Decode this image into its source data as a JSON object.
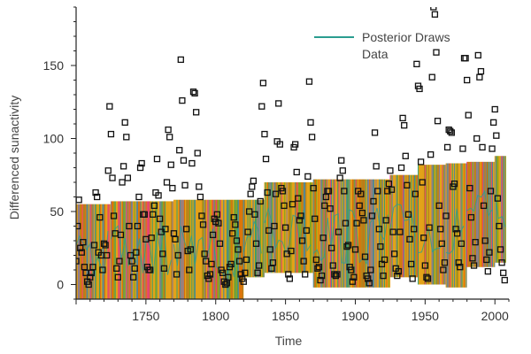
{
  "chart_data": {
    "type": "scatter",
    "xlabel": "Time",
    "ylabel": "Differenced sunactivity",
    "xlim": [
      1700,
      2010
    ],
    "ylim": [
      -10,
      190
    ],
    "xticks": [
      1750,
      1800,
      1850,
      1900,
      1950,
      2000
    ],
    "yticks": [
      0,
      50,
      100,
      150
    ],
    "legend": {
      "position": "top-right",
      "entries": [
        "Posterior Draws",
        "Data"
      ]
    },
    "colors": {
      "draws_line": "#2a9d8f",
      "data_marker": "#111111",
      "band_main": "#e3a21a"
    },
    "posterior_draws": {
      "segments": [
        {
          "x0": 1700,
          "x1": 1725,
          "low": -10,
          "high": 55
        },
        {
          "x0": 1725,
          "x1": 1770,
          "low": -10,
          "high": 57
        },
        {
          "x0": 1770,
          "x1": 1820,
          "low": -10,
          "high": 58
        },
        {
          "x0": 1820,
          "x1": 1835,
          "low": 5,
          "high": 58
        },
        {
          "x0": 1835,
          "x1": 1870,
          "low": 8,
          "high": 70
        },
        {
          "x0": 1870,
          "x1": 1925,
          "low": -2,
          "high": 72
        },
        {
          "x0": 1925,
          "x1": 1945,
          "low": 5,
          "high": 75
        },
        {
          "x0": 1945,
          "x1": 1965,
          "low": 0,
          "high": 82
        },
        {
          "x0": 1965,
          "x1": 1980,
          "low": -2,
          "high": 83
        },
        {
          "x0": 1980,
          "x1": 2000,
          "low": 12,
          "high": 84
        },
        {
          "x0": 2000,
          "x1": 2008,
          "low": 15,
          "high": 88
        }
      ]
    },
    "data_series": {
      "name": "Data",
      "points": [
        [
          1700,
          16
        ],
        [
          1701,
          40
        ],
        [
          1702,
          58
        ],
        [
          1703,
          25
        ],
        [
          1704,
          22
        ],
        [
          1705,
          29
        ],
        [
          1706,
          12
        ],
        [
          1707,
          8
        ],
        [
          1708,
          2
        ],
        [
          1709,
          0
        ],
        [
          1710,
          5
        ],
        [
          1711,
          8
        ],
        [
          1712,
          12
        ],
        [
          1713,
          27
        ],
        [
          1714,
          63
        ],
        [
          1715,
          60
        ],
        [
          1716,
          22
        ],
        [
          1717,
          46
        ],
        [
          1718,
          20
        ],
        [
          1719,
          10
        ],
        [
          1720,
          28
        ],
        [
          1721,
          27
        ],
        [
          1722,
          20
        ],
        [
          1723,
          78
        ],
        [
          1724,
          122
        ],
        [
          1725,
          103
        ],
        [
          1726,
          73
        ],
        [
          1727,
          47
        ],
        [
          1728,
          35
        ],
        [
          1729,
          11
        ],
        [
          1730,
          5
        ],
        [
          1731,
          16
        ],
        [
          1732,
          34
        ],
        [
          1733,
          70
        ],
        [
          1734,
          81
        ],
        [
          1735,
          111
        ],
        [
          1736,
          101
        ],
        [
          1737,
          73
        ],
        [
          1738,
          40
        ],
        [
          1739,
          20
        ],
        [
          1740,
          16
        ],
        [
          1741,
          5
        ],
        [
          1742,
          11
        ],
        [
          1743,
          22
        ],
        [
          1744,
          40
        ],
        [
          1745,
          60
        ],
        [
          1746,
          80
        ],
        [
          1747,
          83
        ],
        [
          1748,
          48
        ],
        [
          1749,
          48
        ],
        [
          1750,
          31
        ],
        [
          1751,
          12
        ],
        [
          1752,
          10
        ],
        [
          1753,
          10
        ],
        [
          1754,
          32
        ],
        [
          1755,
          48
        ],
        [
          1756,
          54
        ],
        [
          1757,
          63
        ],
        [
          1758,
          86
        ],
        [
          1759,
          61
        ],
        [
          1760,
          45
        ],
        [
          1761,
          36
        ],
        [
          1762,
          21
        ],
        [
          1763,
          11
        ],
        [
          1764,
          38
        ],
        [
          1765,
          70
        ],
        [
          1766,
          106
        ],
        [
          1767,
          101
        ],
        [
          1768,
          82
        ],
        [
          1769,
          66
        ],
        [
          1770,
          35
        ],
        [
          1771,
          31
        ],
        [
          1772,
          7
        ],
        [
          1773,
          20
        ],
        [
          1774,
          92
        ],
        [
          1775,
          154
        ],
        [
          1776,
          126
        ],
        [
          1777,
          85
        ],
        [
          1778,
          68
        ],
        [
          1779,
          38
        ],
        [
          1780,
          23
        ],
        [
          1781,
          10
        ],
        [
          1782,
          24
        ],
        [
          1783,
          83
        ],
        [
          1784,
          132
        ],
        [
          1785,
          131
        ],
        [
          1786,
          118
        ],
        [
          1787,
          90
        ],
        [
          1788,
          67
        ],
        [
          1789,
          60
        ],
        [
          1790,
          47
        ],
        [
          1791,
          41
        ],
        [
          1792,
          21
        ],
        [
          1793,
          16
        ],
        [
          1794,
          6
        ],
        [
          1795,
          4
        ],
        [
          1796,
          7
        ],
        [
          1797,
          14
        ],
        [
          1798,
          34
        ],
        [
          1799,
          45
        ],
        [
          1800,
          43
        ],
        [
          1801,
          48
        ],
        [
          1802,
          42
        ],
        [
          1803,
          28
        ],
        [
          1804,
          10
        ],
        [
          1805,
          8
        ],
        [
          1806,
          2
        ],
        [
          1807,
          0
        ],
        [
          1808,
          1
        ],
        [
          1809,
          5
        ],
        [
          1810,
          12
        ],
        [
          1811,
          14
        ],
        [
          1812,
          35
        ],
        [
          1813,
          46
        ],
        [
          1814,
          41
        ],
        [
          1815,
          30
        ],
        [
          1816,
          24
        ],
        [
          1817,
          16
        ],
        [
          1818,
          7
        ],
        [
          1819,
          4
        ],
        [
          1820,
          2
        ],
        [
          1821,
          8
        ],
        [
          1822,
          17
        ],
        [
          1823,
          36
        ],
        [
          1824,
          50
        ],
        [
          1825,
          62
        ],
        [
          1826,
          67
        ],
        [
          1827,
          71
        ],
        [
          1828,
          48
        ],
        [
          1829,
          28
        ],
        [
          1830,
          8
        ],
        [
          1831,
          13
        ],
        [
          1832,
          57
        ],
        [
          1833,
          122
        ],
        [
          1834,
          138
        ],
        [
          1835,
          103
        ],
        [
          1836,
          86
        ],
        [
          1837,
          63
        ],
        [
          1838,
          37
        ],
        [
          1839,
          24
        ],
        [
          1840,
          11
        ],
        [
          1841,
          15
        ],
        [
          1842,
          40
        ],
        [
          1843,
          62
        ],
        [
          1844,
          98
        ],
        [
          1845,
          124
        ],
        [
          1846,
          96
        ],
        [
          1847,
          66
        ],
        [
          1848,
          64
        ],
        [
          1849,
          54
        ],
        [
          1850,
          39
        ],
        [
          1851,
          21
        ],
        [
          1852,
          7
        ],
        [
          1853,
          4
        ],
        [
          1854,
          23
        ],
        [
          1855,
          55
        ],
        [
          1856,
          94
        ],
        [
          1857,
          96
        ],
        [
          1858,
          77
        ],
        [
          1859,
          59
        ],
        [
          1860,
          44
        ],
        [
          1861,
          47
        ],
        [
          1862,
          30
        ],
        [
          1863,
          16
        ],
        [
          1864,
          7
        ],
        [
          1865,
          37
        ],
        [
          1866,
          74
        ],
        [
          1867,
          139
        ],
        [
          1868,
          111
        ],
        [
          1869,
          101
        ],
        [
          1870,
          66
        ],
        [
          1871,
          45
        ],
        [
          1872,
          17
        ],
        [
          1873,
          11
        ],
        [
          1874,
          12
        ],
        [
          1875,
          3
        ],
        [
          1876,
          6
        ],
        [
          1877,
          32
        ],
        [
          1878,
          54
        ],
        [
          1879,
          60
        ],
        [
          1880,
          64
        ],
        [
          1881,
          64
        ],
        [
          1882,
          52
        ],
        [
          1883,
          25
        ],
        [
          1884,
          13
        ],
        [
          1885,
          7
        ],
        [
          1886,
          6
        ],
        [
          1887,
          7
        ],
        [
          1888,
          36
        ],
        [
          1889,
          73
        ],
        [
          1890,
          85
        ],
        [
          1891,
          78
        ],
        [
          1892,
          64
        ],
        [
          1893,
          42
        ],
        [
          1894,
          26
        ],
        [
          1895,
          27
        ],
        [
          1896,
          12
        ],
        [
          1897,
          10
        ],
        [
          1898,
          2
        ],
        [
          1899,
          5
        ],
        [
          1900,
          24
        ],
        [
          1901,
          42
        ],
        [
          1902,
          64
        ],
        [
          1903,
          54
        ],
        [
          1904,
          62
        ],
        [
          1905,
          49
        ],
        [
          1906,
          44
        ],
        [
          1907,
          19
        ],
        [
          1908,
          6
        ],
        [
          1909,
          4
        ],
        [
          1910,
          1
        ],
        [
          1911,
          10
        ],
        [
          1912,
          47
        ],
        [
          1913,
          57
        ],
        [
          1914,
          104
        ],
        [
          1915,
          81
        ],
        [
          1916,
          64
        ],
        [
          1917,
          38
        ],
        [
          1918,
          26
        ],
        [
          1919,
          14
        ],
        [
          1920,
          6
        ],
        [
          1921,
          17
        ],
        [
          1922,
          44
        ],
        [
          1923,
          64
        ],
        [
          1924,
          69
        ],
        [
          1925,
          78
        ],
        [
          1926,
          65
        ],
        [
          1927,
          36
        ],
        [
          1928,
          21
        ],
        [
          1929,
          11
        ],
        [
          1930,
          6
        ],
        [
          1931,
          9
        ],
        [
          1932,
          36
        ],
        [
          1933,
          80
        ],
        [
          1934,
          114
        ],
        [
          1935,
          109
        ],
        [
          1936,
          88
        ],
        [
          1937,
          68
        ],
        [
          1938,
          48
        ],
        [
          1939,
          31
        ],
        [
          1940,
          14
        ],
        [
          1941,
          4
        ],
        [
          1942,
          38
        ],
        [
          1943,
          62
        ],
        [
          1944,
          151
        ],
        [
          1945,
          136
        ],
        [
          1946,
          134
        ],
        [
          1947,
          84
        ],
        [
          1948,
          70
        ],
        [
          1949,
          32
        ],
        [
          1950,
          13
        ],
        [
          1951,
          5
        ],
        [
          1952,
          4
        ],
        [
          1953,
          39
        ],
        [
          1954,
          89
        ],
        [
          1955,
          142
        ],
        [
          1956,
          190
        ],
        [
          1957,
          185
        ],
        [
          1958,
          159
        ],
        [
          1959,
          112
        ],
        [
          1960,
          54
        ],
        [
          1961,
          38
        ],
        [
          1962,
          28
        ],
        [
          1963,
          10
        ],
        [
          1964,
          15
        ],
        [
          1965,
          47
        ],
        [
          1966,
          94
        ],
        [
          1967,
          106
        ],
        [
          1968,
          105
        ],
        [
          1969,
          104
        ],
        [
          1970,
          67
        ],
        [
          1971,
          69
        ],
        [
          1972,
          38
        ],
        [
          1973,
          35
        ],
        [
          1974,
          15
        ],
        [
          1975,
          12
        ],
        [
          1976,
          28
        ],
        [
          1977,
          93
        ],
        [
          1978,
          155
        ],
        [
          1979,
          155
        ],
        [
          1980,
          140
        ],
        [
          1981,
          116
        ],
        [
          1982,
          66
        ],
        [
          1983,
          46
        ],
        [
          1984,
          18
        ],
        [
          1985,
          13
        ],
        [
          1986,
          29
        ],
        [
          1987,
          100
        ],
        [
          1988,
          157
        ],
        [
          1989,
          142
        ],
        [
          1990,
          146
        ],
        [
          1991,
          94
        ],
        [
          1992,
          54
        ],
        [
          1993,
          30
        ],
        [
          1994,
          17
        ],
        [
          1995,
          9
        ],
        [
          1996,
          22
        ],
        [
          1997,
          64
        ],
        [
          1998,
          93
        ],
        [
          1999,
          111
        ],
        [
          2000,
          120
        ],
        [
          2001,
          102
        ],
        [
          2002,
          59
        ],
        [
          2003,
          40
        ],
        [
          2004,
          24
        ],
        [
          2005,
          15
        ],
        [
          2006,
          8
        ],
        [
          2007,
          3
        ]
      ]
    }
  }
}
